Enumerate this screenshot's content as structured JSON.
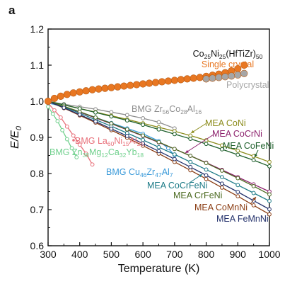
{
  "panel_label": "a",
  "chart_data": {
    "type": "line",
    "xlabel": "Temperature (K)",
    "ylabel": "E/E",
    "ylabel_sub": "0",
    "xlim": [
      300,
      1000
    ],
    "ylim": [
      0.6,
      1.2
    ],
    "xticks": [
      300,
      400,
      500,
      600,
      700,
      800,
      900,
      1000
    ],
    "yticks": [
      0.6,
      0.7,
      0.8,
      0.9,
      1.0,
      1.1,
      1.2
    ],
    "xtick_labels": [
      "300",
      "400",
      "500",
      "600",
      "700",
      "800",
      "900",
      "1000"
    ],
    "ytick_labels": [
      "0.6",
      "0.7",
      "0.8",
      "0.9",
      "1.0",
      "1.1",
      "1.2"
    ],
    "grid": false,
    "title_annotation": [
      {
        "t": "Co",
        "sub": false
      },
      {
        "t": "25",
        "sub": true
      },
      {
        "t": "Ni",
        "sub": false
      },
      {
        "t": "25",
        "sub": true
      },
      {
        "t": "(HfTiZr)",
        "sub": false
      },
      {
        "t": "50",
        "sub": true
      }
    ],
    "series": [
      {
        "name": "Single crystal",
        "color": "#e87722",
        "marker": "filled-circle",
        "x": [
          300,
          320,
          340,
          360,
          380,
          400,
          420,
          440,
          460,
          480,
          500,
          520,
          540,
          560,
          580,
          600,
          620,
          640,
          660,
          680,
          700,
          720,
          740,
          760,
          780,
          800,
          820,
          840,
          860,
          880,
          900,
          920
        ],
        "y": [
          1.0,
          1.008,
          1.014,
          1.019,
          1.023,
          1.026,
          1.029,
          1.032,
          1.034,
          1.036,
          1.038,
          1.04,
          1.042,
          1.044,
          1.046,
          1.048,
          1.05,
          1.052,
          1.054,
          1.056,
          1.058,
          1.06,
          1.062,
          1.064,
          1.066,
          1.069,
          1.072,
          1.075,
          1.079,
          1.084,
          1.09,
          1.1
        ]
      },
      {
        "name": "Polycrystal",
        "color": "#a6a6a6",
        "marker": "filled-circle",
        "x": [
          800,
          820,
          840,
          860,
          880,
          900,
          920
        ],
        "y": [
          1.062,
          1.064,
          1.066,
          1.068,
          1.07,
          1.073,
          1.077
        ]
      },
      {
        "label_parts": [
          {
            "t": "BMG Zr",
            "sub": false
          },
          {
            "t": "56",
            "sub": true
          },
          {
            "t": "Co",
            "sub": false
          },
          {
            "t": "28",
            "sub": true
          },
          {
            "t": "Al",
            "sub": false
          },
          {
            "t": "16",
            "sub": true
          }
        ],
        "color": "#8c8c8c",
        "marker": "open-circle",
        "x": [
          300,
          350,
          400,
          450,
          500,
          550,
          600,
          650,
          700
        ],
        "y": [
          1.0,
          0.992,
          0.985,
          0.978,
          0.97,
          0.962,
          0.953,
          0.942,
          0.925
        ]
      },
      {
        "label_parts": [
          {
            "t": "BMG La",
            "sub": false
          },
          {
            "t": "60",
            "sub": true
          },
          {
            "t": "Ni",
            "sub": false
          },
          {
            "t": "15",
            "sub": true
          },
          {
            "t": "Al",
            "sub": false
          },
          {
            "t": "25",
            "sub": true
          }
        ],
        "color": "#e8707a",
        "marker": "open-circle",
        "x": [
          300,
          320,
          340,
          360,
          380,
          400,
          420,
          440
        ],
        "y": [
          0.995,
          0.975,
          0.955,
          0.93,
          0.905,
          0.88,
          0.855,
          0.825
        ]
      },
      {
        "label_parts": [
          {
            "t": "BMG Zn",
            "sub": false
          },
          {
            "t": "38",
            "sub": true
          },
          {
            "t": "Mg",
            "sub": false
          },
          {
            "t": "12",
            "sub": true
          },
          {
            "t": "Ca",
            "sub": false
          },
          {
            "t": "32",
            "sub": true
          },
          {
            "t": "Yb",
            "sub": false
          },
          {
            "t": "18",
            "sub": true
          }
        ],
        "color": "#6fd08c",
        "marker": "open-circle",
        "x": [
          300,
          315,
          330,
          345,
          360,
          375,
          390
        ],
        "y": [
          0.985,
          0.965,
          0.945,
          0.92,
          0.895,
          0.87,
          0.845
        ]
      },
      {
        "label_parts": [
          {
            "t": "BMG Cu",
            "sub": false
          },
          {
            "t": "46",
            "sub": true
          },
          {
            "t": "Zr",
            "sub": false
          },
          {
            "t": "47",
            "sub": true
          },
          {
            "t": "Al",
            "sub": false
          },
          {
            "t": "7",
            "sub": true
          }
        ],
        "color": "#3a9ad9",
        "marker": "open-circle",
        "x": [
          300,
          350,
          400,
          450,
          500,
          550,
          600,
          650,
          680,
          700
        ],
        "y": [
          0.995,
          0.985,
          0.97,
          0.955,
          0.94,
          0.925,
          0.91,
          0.89,
          0.87,
          0.85
        ]
      },
      {
        "name": "MEA CoNi",
        "color": "#8b8b1a",
        "marker": "open-circle",
        "x": [
          300,
          350,
          400,
          450,
          500,
          550,
          600,
          650,
          700,
          750,
          800,
          850,
          900,
          950,
          1000
        ],
        "y": [
          1.0,
          0.99,
          0.98,
          0.97,
          0.96,
          0.95,
          0.939,
          0.928,
          0.917,
          0.905,
          0.892,
          0.878,
          0.863,
          0.848,
          0.832
        ]
      },
      {
        "name": "MEA CoCrNi",
        "color": "#8b1f6b",
        "marker": "open-circle",
        "x": [
          300,
          350,
          400,
          450,
          500,
          550,
          600,
          650,
          700,
          750,
          800,
          850,
          900,
          950,
          1000
        ],
        "y": [
          1.0,
          0.985,
          0.97,
          0.954,
          0.938,
          0.921,
          0.904,
          0.886,
          0.868,
          0.849,
          0.83,
          0.81,
          0.79,
          0.77,
          0.75
        ]
      },
      {
        "name": "MEA CoFeNi",
        "color": "#1d5e2a",
        "marker": "open-circle",
        "x": [
          300,
          350,
          400,
          450,
          500,
          550,
          600,
          650,
          700,
          750,
          800,
          850,
          900,
          950,
          1000
        ],
        "y": [
          1.0,
          0.99,
          0.98,
          0.969,
          0.958,
          0.947,
          0.935,
          0.922,
          0.909,
          0.896,
          0.882,
          0.867,
          0.852,
          0.837,
          0.82
        ]
      },
      {
        "name": "MEA CoCrFeNi",
        "color": "#1b7a86",
        "marker": "open-circle",
        "x": [
          300,
          350,
          400,
          450,
          500,
          550,
          600,
          650,
          700,
          750,
          800,
          850,
          900,
          950,
          1000
        ],
        "y": [
          1.0,
          0.984,
          0.967,
          0.949,
          0.931,
          0.912,
          0.893,
          0.873,
          0.853,
          0.832,
          0.811,
          0.79,
          0.768,
          0.746,
          0.724
        ]
      },
      {
        "name": "MEA CrFeNi",
        "color": "#4d6b22",
        "marker": "open-circle",
        "x": [
          300,
          350,
          400,
          450,
          500,
          550,
          600,
          650,
          700,
          750,
          800,
          850,
          900,
          950,
          1000
        ],
        "y": [
          1.0,
          0.986,
          0.971,
          0.955,
          0.939,
          0.922,
          0.905,
          0.887,
          0.868,
          0.849,
          0.829,
          0.808,
          0.787,
          0.765,
          0.742
        ]
      },
      {
        "name": "MEA CoMnNi",
        "color": "#8a3c12",
        "marker": "open-circle",
        "x": [
          300,
          350,
          400,
          450,
          500,
          550,
          600,
          650,
          700,
          750,
          800,
          850,
          900,
          950,
          1000
        ],
        "y": [
          1.0,
          0.981,
          0.961,
          0.941,
          0.92,
          0.899,
          0.877,
          0.855,
          0.832,
          0.809,
          0.785,
          0.761,
          0.737,
          0.712,
          0.687
        ]
      },
      {
        "name": "MEA FeMnNi",
        "color": "#22306b",
        "marker": "open-circle",
        "x": [
          300,
          350,
          400,
          450,
          500,
          550,
          600,
          650,
          700,
          750,
          800,
          850,
          900,
          950,
          1000
        ],
        "y": [
          1.0,
          0.982,
          0.963,
          0.944,
          0.924,
          0.904,
          0.883,
          0.862,
          0.84,
          0.818,
          0.795,
          0.772,
          0.749,
          0.725,
          0.701
        ]
      }
    ]
  }
}
